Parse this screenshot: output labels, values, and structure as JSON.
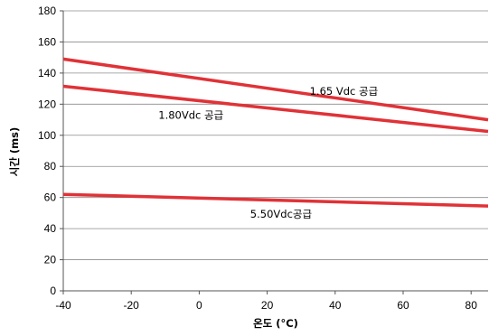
{
  "chart_data": {
    "type": "line",
    "title": "",
    "xlabel": "온도 (°C)",
    "ylabel": "시간 (ms)",
    "xlim": [
      -40,
      85
    ],
    "ylim": [
      0,
      180
    ],
    "xticks": [
      -40,
      -20,
      0,
      20,
      40,
      60,
      80
    ],
    "yticks": [
      0,
      20,
      40,
      60,
      80,
      100,
      120,
      140,
      160,
      180
    ],
    "grid": "horizontal",
    "line_color": "#E03237",
    "series": [
      {
        "name": "1.65 Vdc 공급",
        "x": [
          -40,
          85
        ],
        "y": [
          149,
          110
        ]
      },
      {
        "name": "1.80Vdc 공급",
        "x": [
          -40,
          85
        ],
        "y": [
          131.5,
          102.5
        ]
      },
      {
        "name": "5.50Vdc공급",
        "x": [
          -40,
          85
        ],
        "y": [
          62,
          54.5
        ]
      }
    ]
  }
}
